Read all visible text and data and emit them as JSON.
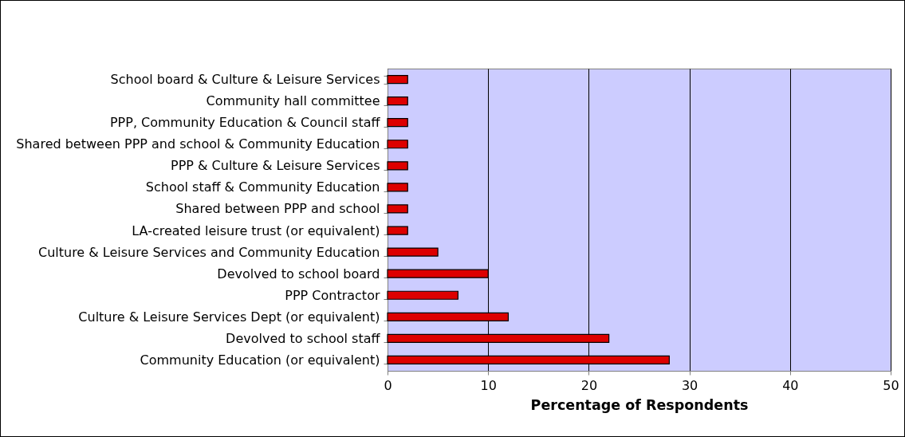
{
  "chart_data": {
    "type": "bar",
    "orientation": "horizontal",
    "categories": [
      "School board & Culture & Leisure Services",
      "Community hall committee",
      "PPP, Community Education & Council staff",
      "Shared between PPP and school & Community Education",
      "PPP & Culture & Leisure Services",
      "School staff & Community Education",
      "Shared between PPP and school",
      "LA-created leisure trust (or equivalent)",
      "Culture & Leisure Services and Community Education",
      "Devolved to school board",
      "PPP Contractor",
      "Culture & Leisure Services Dept (or equivalent)",
      "Devolved to school staff",
      "Community Education (or equivalent)"
    ],
    "values": [
      2,
      2,
      2,
      2,
      2,
      2,
      2,
      2,
      5,
      10,
      7,
      12,
      22,
      28
    ],
    "color": "#dd0000",
    "xlabel": "Percentage of Respondents",
    "xlim": [
      0,
      50
    ],
    "xticks": [
      0,
      10,
      20,
      30,
      40,
      50
    ],
    "grid": "x"
  }
}
